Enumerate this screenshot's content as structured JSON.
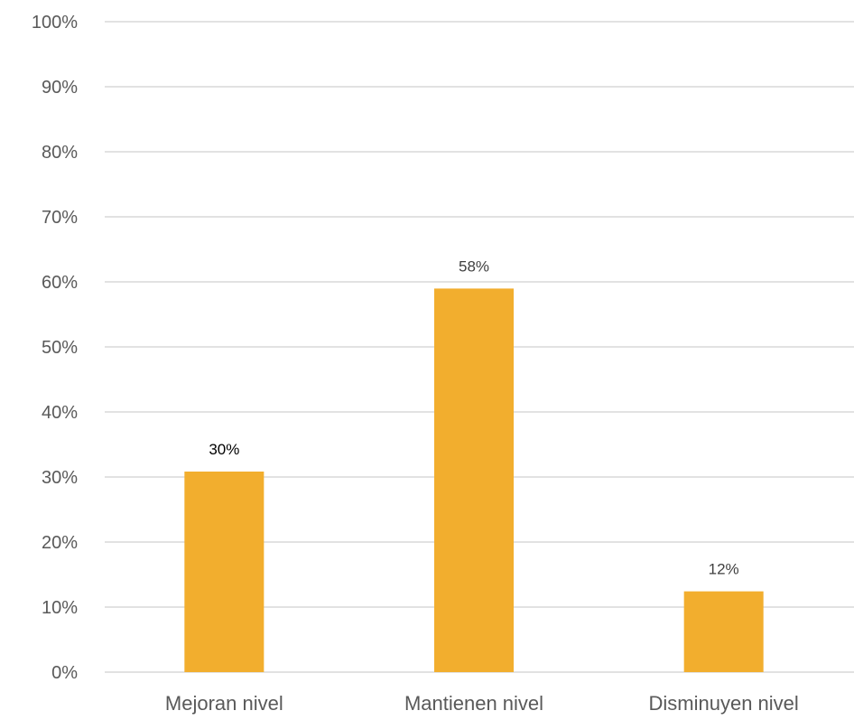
{
  "chart_data": {
    "type": "bar",
    "categories": [
      "Mejoran nivel",
      "Mantienen nivel",
      "Disminuyen nivel"
    ],
    "values": [
      0.3,
      0.58,
      0.12
    ],
    "data_labels": [
      "30%",
      "58%",
      "12%"
    ],
    "ylim": [
      0,
      1
    ],
    "y_ticks": [
      "0%",
      "10%",
      "20%",
      "30%",
      "40%",
      "50%",
      "60%",
      "70%",
      "80%",
      "90%",
      "100%"
    ],
    "title": "",
    "xlabel": "",
    "ylabel": "",
    "grid": true,
    "legend": "none",
    "bar_color": "#F2AE2E",
    "grid_color": "#D9D9D9"
  }
}
